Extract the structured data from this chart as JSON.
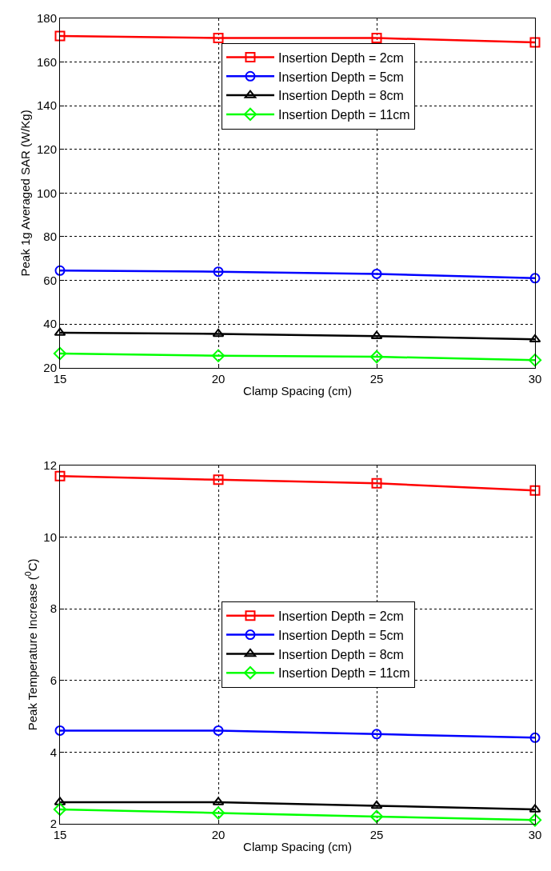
{
  "chart_data": [
    {
      "type": "line",
      "xlabel": "Clamp Spacing (cm)",
      "ylabel": "Peak 1g Averaged SAR (W/Kg)",
      "x": [
        15,
        20,
        25,
        30
      ],
      "xlim": [
        15,
        30
      ],
      "xticks": [
        15,
        20,
        25,
        30
      ],
      "ylim": [
        20,
        180
      ],
      "yticks": [
        20,
        40,
        60,
        80,
        100,
        120,
        140,
        160,
        180
      ],
      "grid": true,
      "legend": "top right",
      "line_style": "solid",
      "series": [
        {
          "name": "Insertion Depth = 2cm",
          "color": "#ff0000",
          "marker": "square",
          "values": [
            172,
            171,
            171,
            169
          ]
        },
        {
          "name": "Insertion Depth = 5cm",
          "color": "#0000ff",
          "marker": "circle",
          "values": [
            64.5,
            64,
            63,
            61
          ]
        },
        {
          "name": "Insertion Depth = 8cm",
          "color": "#000000",
          "marker": "triangle",
          "values": [
            36,
            35.5,
            34.5,
            33
          ]
        },
        {
          "name": "Insertion Depth = 11cm",
          "color": "#00ff00",
          "marker": "diamond",
          "values": [
            26.5,
            25.5,
            25,
            23.5
          ]
        }
      ]
    },
    {
      "type": "line",
      "xlabel": "Clamp Spacing (cm)",
      "ylabel": "Peak Temperature Increase ($^{0}$C)",
      "x": [
        15,
        20,
        25,
        30
      ],
      "xlim": [
        15,
        30
      ],
      "xticks": [
        15,
        20,
        25,
        30
      ],
      "ylim": [
        2,
        12
      ],
      "yticks": [
        2,
        4,
        6,
        8,
        10,
        12
      ],
      "grid": true,
      "legend": "right",
      "line_style": "solid",
      "series": [
        {
          "name": "Insertion Depth = 2cm",
          "color": "#ff0000",
          "marker": "square",
          "values": [
            11.7,
            11.6,
            11.5,
            11.3
          ]
        },
        {
          "name": "Insertion Depth = 5cm",
          "color": "#0000ff",
          "marker": "circle",
          "values": [
            4.6,
            4.6,
            4.5,
            4.4
          ]
        },
        {
          "name": "Insertion Depth = 8cm",
          "color": "#000000",
          "marker": "triangle",
          "values": [
            2.6,
            2.6,
            2.5,
            2.4
          ]
        },
        {
          "name": "Insertion Depth = 11cm",
          "color": "#00ff00",
          "marker": "diamond",
          "values": [
            2.4,
            2.3,
            2.2,
            2.1
          ]
        }
      ]
    }
  ]
}
